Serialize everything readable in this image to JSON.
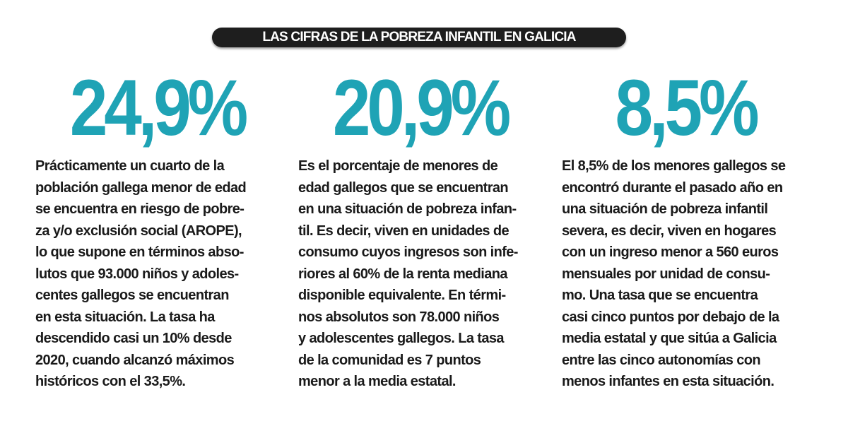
{
  "title": "LAS CIFRAS DE LA POBREZA INFANTIL EN GALICIA",
  "accent_color": "#1fa3b5",
  "columns": [
    {
      "figure": "24,9%",
      "lines": [
        "Prácticamente un cuarto de la",
        "población gallega menor de edad",
        "se encuentra en riesgo de pobre-",
        "za y/o exclusión social (AROPE),",
        "lo que supone en términos abso-",
        "lutos que 93.000 niños y adoles-",
        "centes gallegos se encuentran",
        "en esta situación. La tasa ha",
        "descendido casi un 10% desde",
        "2020, cuando alcanzó máximos",
        "históricos con el 33,5%."
      ]
    },
    {
      "figure": "20,9%",
      "lines": [
        "Es el porcentaje de menores de",
        "edad gallegos que se encuentran",
        "en una situación de pobreza infan-",
        "til. Es decir, viven en unidades de",
        "consumo cuyos ingresos son infe-",
        "riores al 60% de la renta mediana",
        "disponible equivalente. En térmi-",
        "nos absolutos son 78.000 niños",
        "y adolescentes gallegos. La tasa",
        "de la comunidad es 7 puntos",
        "menor a la media estatal."
      ]
    },
    {
      "figure": "8,5%",
      "lines": [
        "El 8,5% de los menores gallegos se",
        "encontró durante el pasado año en",
        "una situación de pobreza infantil",
        "severa, es decir,  viven en hogares",
        "con un ingreso menor a 560 euros",
        "mensuales por unidad de consu-",
        "mo.  Una tasa que se encuentra",
        "casi cinco puntos por debajo de la",
        "media estatal y que sitúa a Galicia",
        "entre las cinco autonomías con",
        "menos infantes en esta situación."
      ]
    }
  ]
}
